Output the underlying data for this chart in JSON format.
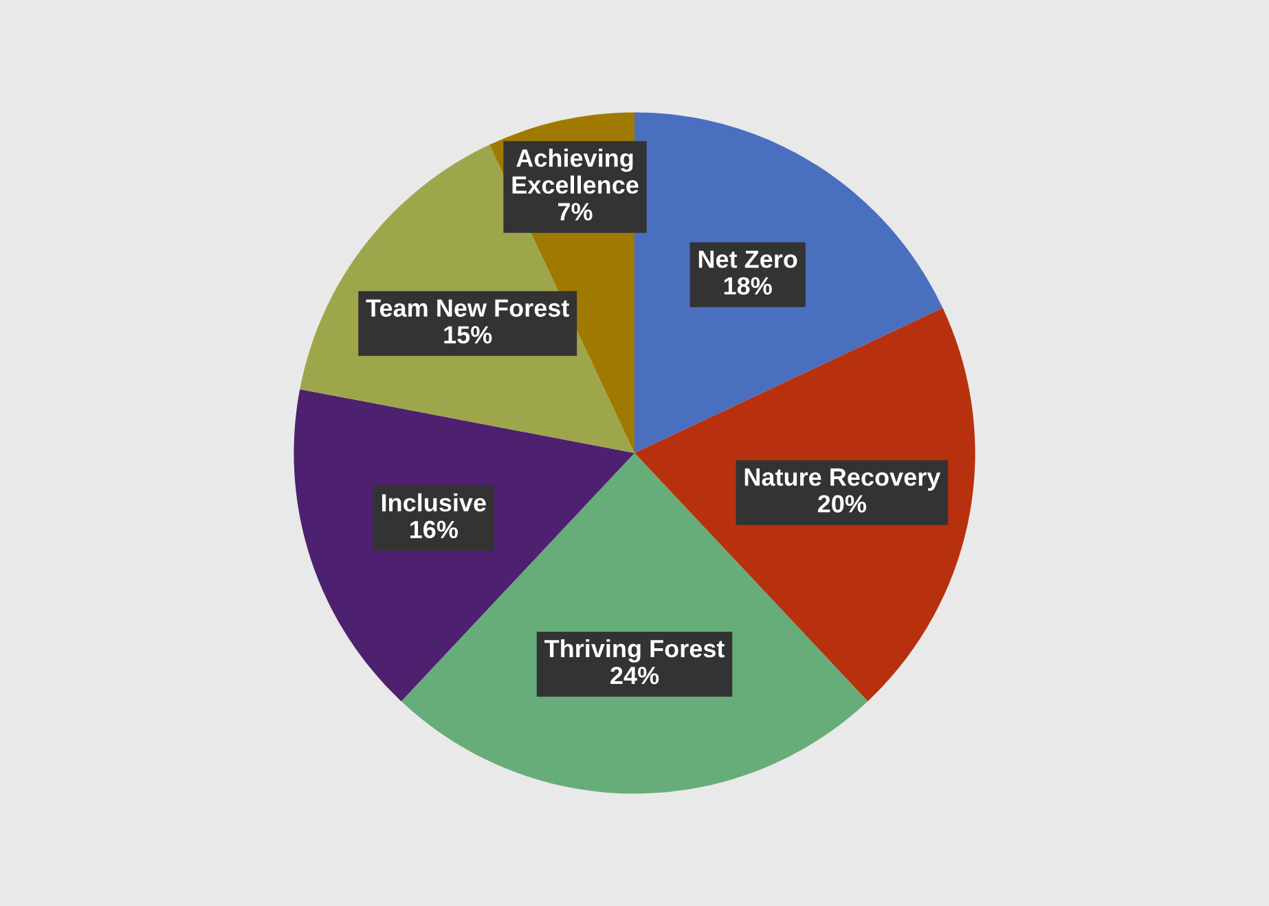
{
  "chart_data": {
    "type": "pie",
    "categories": [
      "Net Zero",
      "Nature Recovery",
      "Thriving Forest",
      "Inclusive",
      "Team New Forest",
      "Achieving Excellence"
    ],
    "values": [
      18,
      20,
      24,
      16,
      15,
      7
    ],
    "value_labels": [
      "18%",
      "20%",
      "24%",
      "16%",
      "15%",
      "7%"
    ],
    "colors": [
      "#4a6fbf",
      "#b8310e",
      "#67ad7a",
      "#4e2070",
      "#9ea64c",
      "#a07a00"
    ],
    "legend": false
  }
}
